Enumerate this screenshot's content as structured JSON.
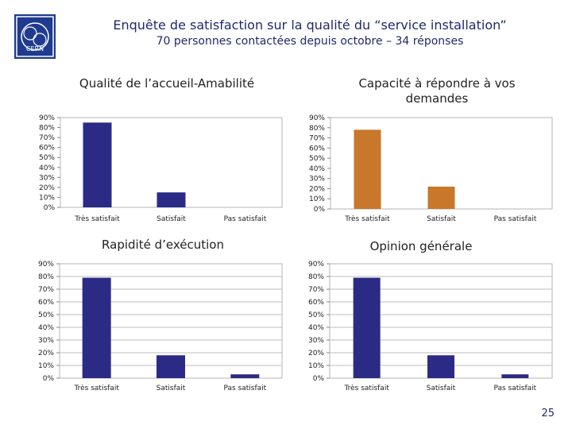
{
  "header": {
    "logo_text": "CERN",
    "title": "Enquête de satisfaction sur la qualité du “service installation”",
    "subtitle": "70 personnes contactées depuis octobre – 34 réponses"
  },
  "colors": {
    "navy": "#2b2b86",
    "orange": "#c8772b",
    "title": "#1f2a6b"
  },
  "chart_data": [
    {
      "type": "bar",
      "title": "Qualité de l’accueil-Amabilité",
      "categories": [
        "Très satisfait",
        "Satisfait",
        "Pas satisfait"
      ],
      "values": [
        85,
        15,
        0
      ],
      "ylim": [
        0,
        90
      ],
      "ytick_step": 10,
      "color": "#2b2b86"
    },
    {
      "type": "bar",
      "title": "Capacité à répondre à vos demandes",
      "categories": [
        "Très satisfait",
        "Satisfait",
        "Pas satisfait"
      ],
      "values": [
        78,
        22,
        0
      ],
      "ylim": [
        0,
        90
      ],
      "ytick_step": 10,
      "color": "#c8772b"
    },
    {
      "type": "bar",
      "title": "Rapidité d’exécution",
      "categories": [
        "Très satisfait",
        "Satisfait",
        "Pas satisfait"
      ],
      "values": [
        79,
        18,
        3
      ],
      "ylim": [
        0,
        90
      ],
      "ytick_step": 10,
      "grid": true,
      "color": "#2b2b86"
    },
    {
      "type": "bar",
      "title": "Opinion générale",
      "categories": [
        "Très satisfait",
        "Satisfait",
        "Pas satisfait"
      ],
      "values": [
        79,
        18,
        3
      ],
      "ylim": [
        0,
        90
      ],
      "ytick_step": 10,
      "grid": true,
      "color": "#2b2b86"
    }
  ],
  "page_number": "25"
}
